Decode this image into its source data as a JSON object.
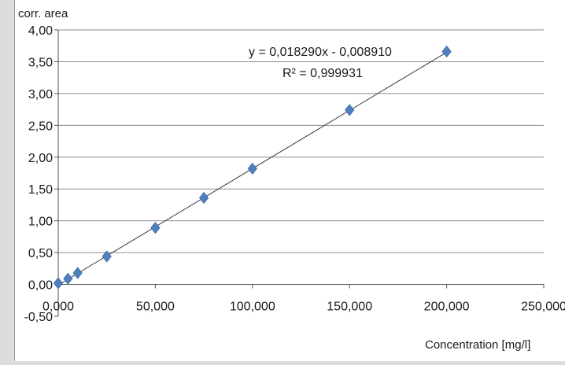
{
  "chart_data": {
    "type": "scatter",
    "ylabel": "corr. area",
    "xlabel": "Concentration [mg/l]",
    "xlim": [
      0,
      250
    ],
    "ylim": [
      -0.5,
      4.0
    ],
    "x_ticks": [
      0,
      50,
      100,
      150,
      200,
      250
    ],
    "x_tick_labels": [
      "0,000",
      "50,000",
      "100,000",
      "150,000",
      "200,000",
      "250,000"
    ],
    "y_ticks": [
      -0.5,
      0,
      0.5,
      1.0,
      1.5,
      2.0,
      2.5,
      3.0,
      3.5,
      4.0
    ],
    "y_tick_labels": [
      "-0,50",
      "0,00",
      "0,50",
      "1,00",
      "1,50",
      "2,00",
      "2,50",
      "3,00",
      "3,50",
      "4,00"
    ],
    "grid": "horizontal",
    "series": [
      {
        "marker": "diamond",
        "color": "#4f7fbf",
        "x": [
          0,
          5,
          10,
          25,
          50,
          75,
          100,
          150,
          200
        ],
        "y": [
          0.02,
          0.09,
          0.18,
          0.44,
          0.89,
          1.36,
          1.82,
          2.74,
          3.66
        ]
      }
    ],
    "trendline": {
      "slope": 0.01829,
      "intercept": -0.00891,
      "color": "#404040",
      "x_range": [
        0,
        200
      ]
    },
    "annotations": {
      "equation": "y = 0,018290x - 0,008910",
      "r_squared": "R² = 0,999931"
    }
  }
}
